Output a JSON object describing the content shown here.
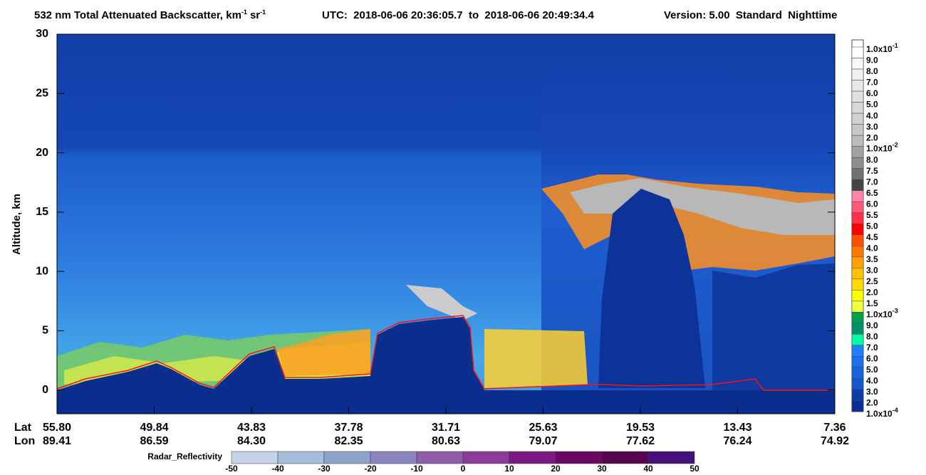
{
  "title": {
    "main": "532 nm Total Attenuated Backscatter, km",
    "exp1": "-1",
    "unit2": "sr",
    "exp2": "-1",
    "utc": "UTC:  2018-06-06 20:36:05.7  to  2018-06-06 20:49:34.4",
    "version": "Version: 5.00  Standard  Nighttime"
  },
  "y_axis": {
    "label": "Altitude, km",
    "lim": [
      -2,
      30
    ],
    "ticks": [
      0,
      5,
      10,
      15,
      20,
      25,
      30
    ]
  },
  "x_axis": {
    "lat_label": "Lat",
    "lon_label": "Lon",
    "lat": [
      "55.80",
      "49.84",
      "43.83",
      "37.78",
      "31.71",
      "25.63",
      "19.53",
      "13.43",
      "7.36"
    ],
    "lon": [
      "89.41",
      "86.59",
      "84.30",
      "82.35",
      "80.63",
      "79.07",
      "77.62",
      "76.24",
      "74.92"
    ]
  },
  "colorbar": {
    "labels": [
      {
        "text": "1.0x10",
        "sup": "-1"
      },
      "9.0",
      "8.0",
      "7.0",
      "6.0",
      "5.0",
      "4.0",
      "3.0",
      "2.0",
      {
        "text": "1.0x10",
        "sup": "-2"
      },
      "8.0",
      "7.5",
      "7.0",
      "6.5",
      "6.0",
      "5.5",
      "5.0",
      "4.5",
      "4.0",
      "3.5",
      "3.0",
      "2.5",
      "2.0",
      "1.5",
      {
        "text": "1.0x10",
        "sup": "-3"
      },
      "9.0",
      "8.0",
      "7.0",
      "6.0",
      "5.0",
      "4.0",
      "3.0",
      "2.0",
      {
        "text": "1.0x10",
        "sup": "-4"
      }
    ],
    "colors": [
      "#ffffff",
      "#f8f8f8",
      "#f0f0f0",
      "#e8e8e8",
      "#e0e0e0",
      "#d8d8d8",
      "#d0d0d0",
      "#c8c8c8",
      "#bcbcbc",
      "#a2a2a2",
      "#8e8e8e",
      "#727272",
      "#454545",
      "#ff82a8",
      "#ff5a78",
      "#ff3048",
      "#ff0000",
      "#ff5000",
      "#ff7800",
      "#ffa000",
      "#ffc000",
      "#ffdc00",
      "#ffff00",
      "#f0ff40",
      "#00a050",
      "#009070",
      "#00ffa0",
      "#1e80ff",
      "#1a70f0",
      "#1664e0",
      "#1458d0",
      "#0c3ca8",
      "#0a2e98"
    ]
  },
  "radar": {
    "label": "Radar_Reflectivity",
    "ticks": [
      -50,
      -40,
      -30,
      -20,
      -10,
      0,
      10,
      20,
      30,
      40,
      50
    ],
    "colors": [
      "#c4d4e4",
      "#a6bcd8",
      "#8ea4cc",
      "#8a84c0",
      "#8e5eaa",
      "#8c3c96",
      "#7c1882",
      "#6a0864",
      "#560450",
      "#46107c"
    ]
  }
}
